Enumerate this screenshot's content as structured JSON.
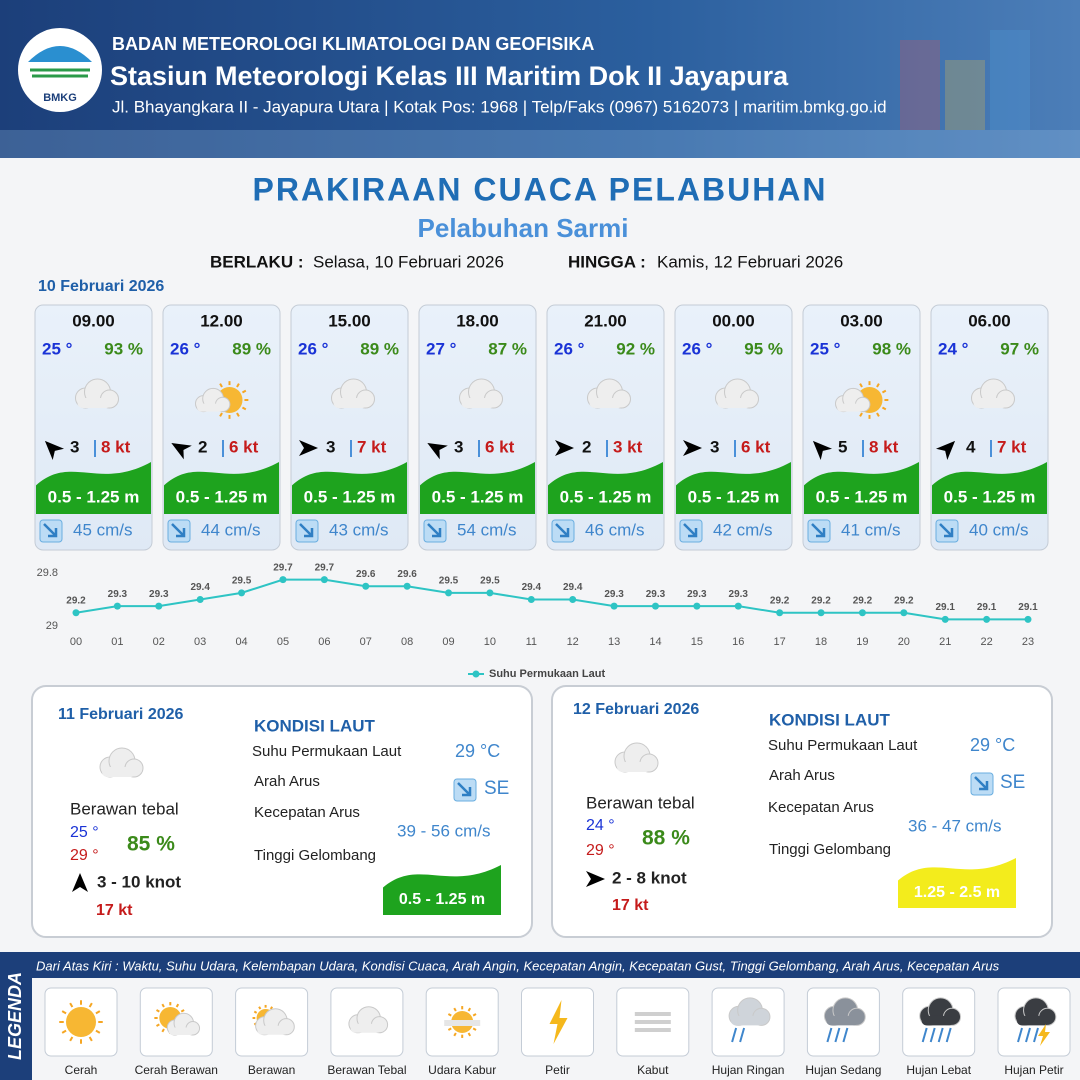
{
  "header": {
    "logo_text": "BMKG",
    "agency": "BADAN METEOROLOGI KLIMATOLOGI DAN GEOFISIKA",
    "station": "Stasiun Meteorologi Kelas III Maritim Dok II Jayapura",
    "address": "Jl. Bhayangkara II - Jayapura Utara | Kotak Pos: 1968 | Telp/Faks (0967) 5162073 | maritim.bmkg.go.id"
  },
  "title": "PRAKIRAAN CUACA PELABUHAN",
  "subtitle": "Pelabuhan Sarmi",
  "validity": {
    "from_label": "BERLAKU :",
    "from": "Selasa, 10 Februari 2026",
    "to_label": "HINGGA :",
    "to": "Kamis, 12 Februari 2026"
  },
  "day1_date": "10 Februari 2026",
  "cards": [
    {
      "time": "09.00",
      "temp": "25 °",
      "humidity": "93 %",
      "wind": "3",
      "gust": "8 kt",
      "wave": "0.5 - 1.25 m",
      "current": "45 cm/s"
    },
    {
      "time": "12.00",
      "temp": "26 °",
      "humidity": "89 %",
      "wind": "2",
      "gust": "6 kt",
      "wave": "0.5 - 1.25 m",
      "current": "44 cm/s"
    },
    {
      "time": "15.00",
      "temp": "26 °",
      "humidity": "89 %",
      "wind": "3",
      "gust": "7 kt",
      "wave": "0.5 - 1.25 m",
      "current": "43 cm/s"
    },
    {
      "time": "18.00",
      "temp": "27 °",
      "humidity": "87 %",
      "wind": "3",
      "gust": "6 kt",
      "wave": "0.5 - 1.25 m",
      "current": "54 cm/s"
    },
    {
      "time": "21.00",
      "temp": "26 °",
      "humidity": "92 %",
      "wind": "2",
      "gust": "3 kt",
      "wave": "0.5 - 1.25 m",
      "current": "46 cm/s"
    },
    {
      "time": "00.00",
      "temp": "26 °",
      "humidity": "95 %",
      "wind": "3",
      "gust": "6 kt",
      "wave": "0.5 - 1.25 m",
      "current": "42 cm/s"
    },
    {
      "time": "03.00",
      "temp": "25 °",
      "humidity": "98 %",
      "wind": "5",
      "gust": "8 kt",
      "wave": "0.5 - 1.25 m",
      "current": "41 cm/s"
    },
    {
      "time": "06.00",
      "temp": "24 °",
      "humidity": "97 %",
      "wind": "4",
      "gust": "7 kt",
      "wave": "0.5 - 1.25 m",
      "current": "40 cm/s"
    }
  ],
  "sst_chart": {
    "type": "line",
    "categories": [
      "00",
      "01",
      "02",
      "03",
      "04",
      "05",
      "06",
      "07",
      "08",
      "09",
      "10",
      "11",
      "12",
      "13",
      "14",
      "15",
      "16",
      "17",
      "18",
      "19",
      "20",
      "21",
      "22",
      "23"
    ],
    "series": [
      {
        "name": "Suhu Permukaan Laut",
        "color": "#2ec4c4",
        "values": [
          29.2,
          29.3,
          29.3,
          29.4,
          29.5,
          29.7,
          29.7,
          29.6,
          29.6,
          29.5,
          29.5,
          29.4,
          29.4,
          29.3,
          29.3,
          29.3,
          29.3,
          29.2,
          29.2,
          29.2,
          29.2,
          29.1,
          29.1,
          29.1
        ]
      }
    ],
    "ylim": [
      29,
      29.8
    ],
    "yticks": [
      29,
      29.8
    ]
  },
  "days": [
    {
      "date": "11 Februari 2026",
      "condition": "Berawan tebal",
      "temp_min": "25 °",
      "temp_max": "29 °",
      "humidity": "85 %",
      "wind": "3  - 10 knot",
      "gust": "17 kt",
      "sea_title": "KONDISI LAUT",
      "sst_label": "Suhu Permukaan Laut",
      "sst": "29 °C",
      "dir_label": "Arah Arus",
      "dir": "SE",
      "speed_label": "Kecepatan Arus",
      "speed": "39 - 56 cm/s",
      "wave_label": "Tinggi Gelombang",
      "wave": "0.5 - 1.25 m"
    },
    {
      "date": "12 Februari 2026",
      "condition": "Berawan tebal",
      "temp_min": "24 °",
      "temp_max": "29 °",
      "humidity": "88 %",
      "wind": "2  - 8 knot",
      "gust": "17 kt",
      "sea_title": "KONDISI LAUT",
      "sst_label": "Suhu Permukaan Laut",
      "sst": "29 °C",
      "dir_label": "Arah Arus",
      "dir": "SE",
      "speed_label": "Kecepatan Arus",
      "speed": "36  - 47 cm/s",
      "wave_label": "Tinggi Gelombang",
      "wave": "1.25 - 2.5 m"
    }
  ],
  "legend": {
    "title": "LEGENDA",
    "description": "Dari Atas Kiri : Waktu, Suhu Udara, Kelembapan Udara, Kondisi Cuaca, Arah Angin, Kecepatan Angin, Kecepatan Gust, Tinggi Gelombang, Arah Arus, Kecepatan Arus",
    "items": [
      "Cerah",
      "Cerah Berawan",
      "Berawan",
      "Berawan Tebal",
      "Udara Kabur",
      "Petir",
      "Kabut",
      "Hujan Ringan",
      "Hujan Sedang",
      "Hujan Lebat",
      "Hujan Petir"
    ]
  }
}
